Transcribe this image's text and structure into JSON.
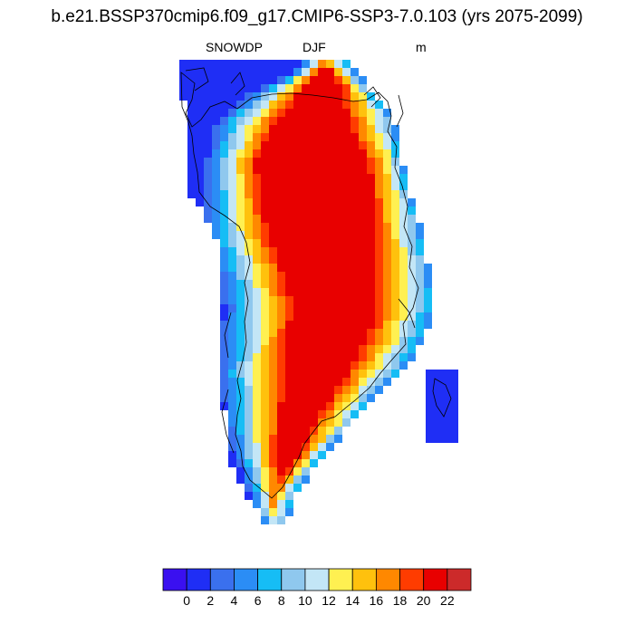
{
  "title": "b.e21.BSSP370cmip6.f09_g17.CMIP6-SSP3-7.0.103 (yrs 2075-2099)",
  "subtitle": {
    "left": "SNOWDP",
    "center": "DJF",
    "right": "m"
  },
  "colorbar": {
    "colors": [
      "#3a10f0",
      "#1f2ef5",
      "#3a70ee",
      "#2b8df5",
      "#16bdf5",
      "#8fc8ee",
      "#c3e6f6",
      "#fff051",
      "#ffc10d",
      "#ff8800",
      "#ff3c00",
      "#e80000",
      "#cc2a2a"
    ],
    "tick_labels": [
      "0",
      "2",
      "4",
      "6",
      "8",
      "10",
      "12",
      "14",
      "16",
      "18",
      "20",
      "22"
    ]
  },
  "map": {
    "variable": "SNOWDP",
    "season": "DJF",
    "units": "m",
    "region": "Greenland"
  }
}
